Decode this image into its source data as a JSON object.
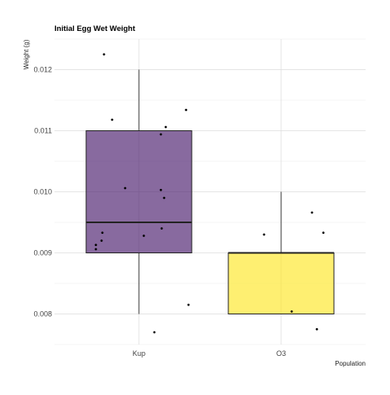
{
  "chart_data": {
    "type": "boxplot",
    "title": "Initial Egg Wet Weight",
    "xlabel": "Population",
    "ylabel": "Weight (g)",
    "ylim": [
      0.0075,
      0.0125
    ],
    "yticks": [
      "0.008",
      "0.009",
      "0.010",
      "0.011",
      "0.012"
    ],
    "grid": true,
    "categories": [
      "Kup",
      "O3"
    ],
    "boxes": [
      {
        "category": "Kup",
        "color": "#481a6c",
        "whisker_low": 0.008,
        "q1": 0.009,
        "median": 0.0095,
        "q3": 0.011,
        "whisker_high": 0.012
      },
      {
        "category": "O3",
        "color": "#fde725",
        "whisker_low": 0.008,
        "q1": 0.008,
        "median": 0.009,
        "q3": 0.009,
        "whisker_high": 0.01
      }
    ],
    "points": [
      {
        "category": "Kup",
        "jitter": -0.43,
        "y": 0.01225
      },
      {
        "category": "Kup",
        "jitter": -0.33,
        "y": 0.01118
      },
      {
        "category": "Kup",
        "jitter": 0.58,
        "y": 0.01134
      },
      {
        "category": "Kup",
        "jitter": 0.33,
        "y": 0.01106
      },
      {
        "category": "Kup",
        "jitter": 0.27,
        "y": 0.01094
      },
      {
        "category": "Kup",
        "jitter": -0.17,
        "y": 0.01006
      },
      {
        "category": "Kup",
        "jitter": 0.27,
        "y": 0.01003
      },
      {
        "category": "Kup",
        "jitter": 0.31,
        "y": 0.0099
      },
      {
        "category": "Kup",
        "jitter": 0.28,
        "y": 0.0094
      },
      {
        "category": "Kup",
        "jitter": 0.06,
        "y": 0.00928
      },
      {
        "category": "Kup",
        "jitter": -0.45,
        "y": 0.00933
      },
      {
        "category": "Kup",
        "jitter": -0.46,
        "y": 0.0092
      },
      {
        "category": "Kup",
        "jitter": -0.53,
        "y": 0.00913
      },
      {
        "category": "Kup",
        "jitter": -0.53,
        "y": 0.00906
      },
      {
        "category": "Kup",
        "jitter": 0.61,
        "y": 0.00815
      },
      {
        "category": "Kup",
        "jitter": 0.19,
        "y": 0.0077
      },
      {
        "category": "O3",
        "jitter": -0.21,
        "y": 0.0093
      },
      {
        "category": "O3",
        "jitter": 0.38,
        "y": 0.00966
      },
      {
        "category": "O3",
        "jitter": 0.52,
        "y": 0.00933
      },
      {
        "category": "O3",
        "jitter": 0.13,
        "y": 0.00804
      },
      {
        "category": "O3",
        "jitter": 0.44,
        "y": 0.00775
      }
    ]
  }
}
